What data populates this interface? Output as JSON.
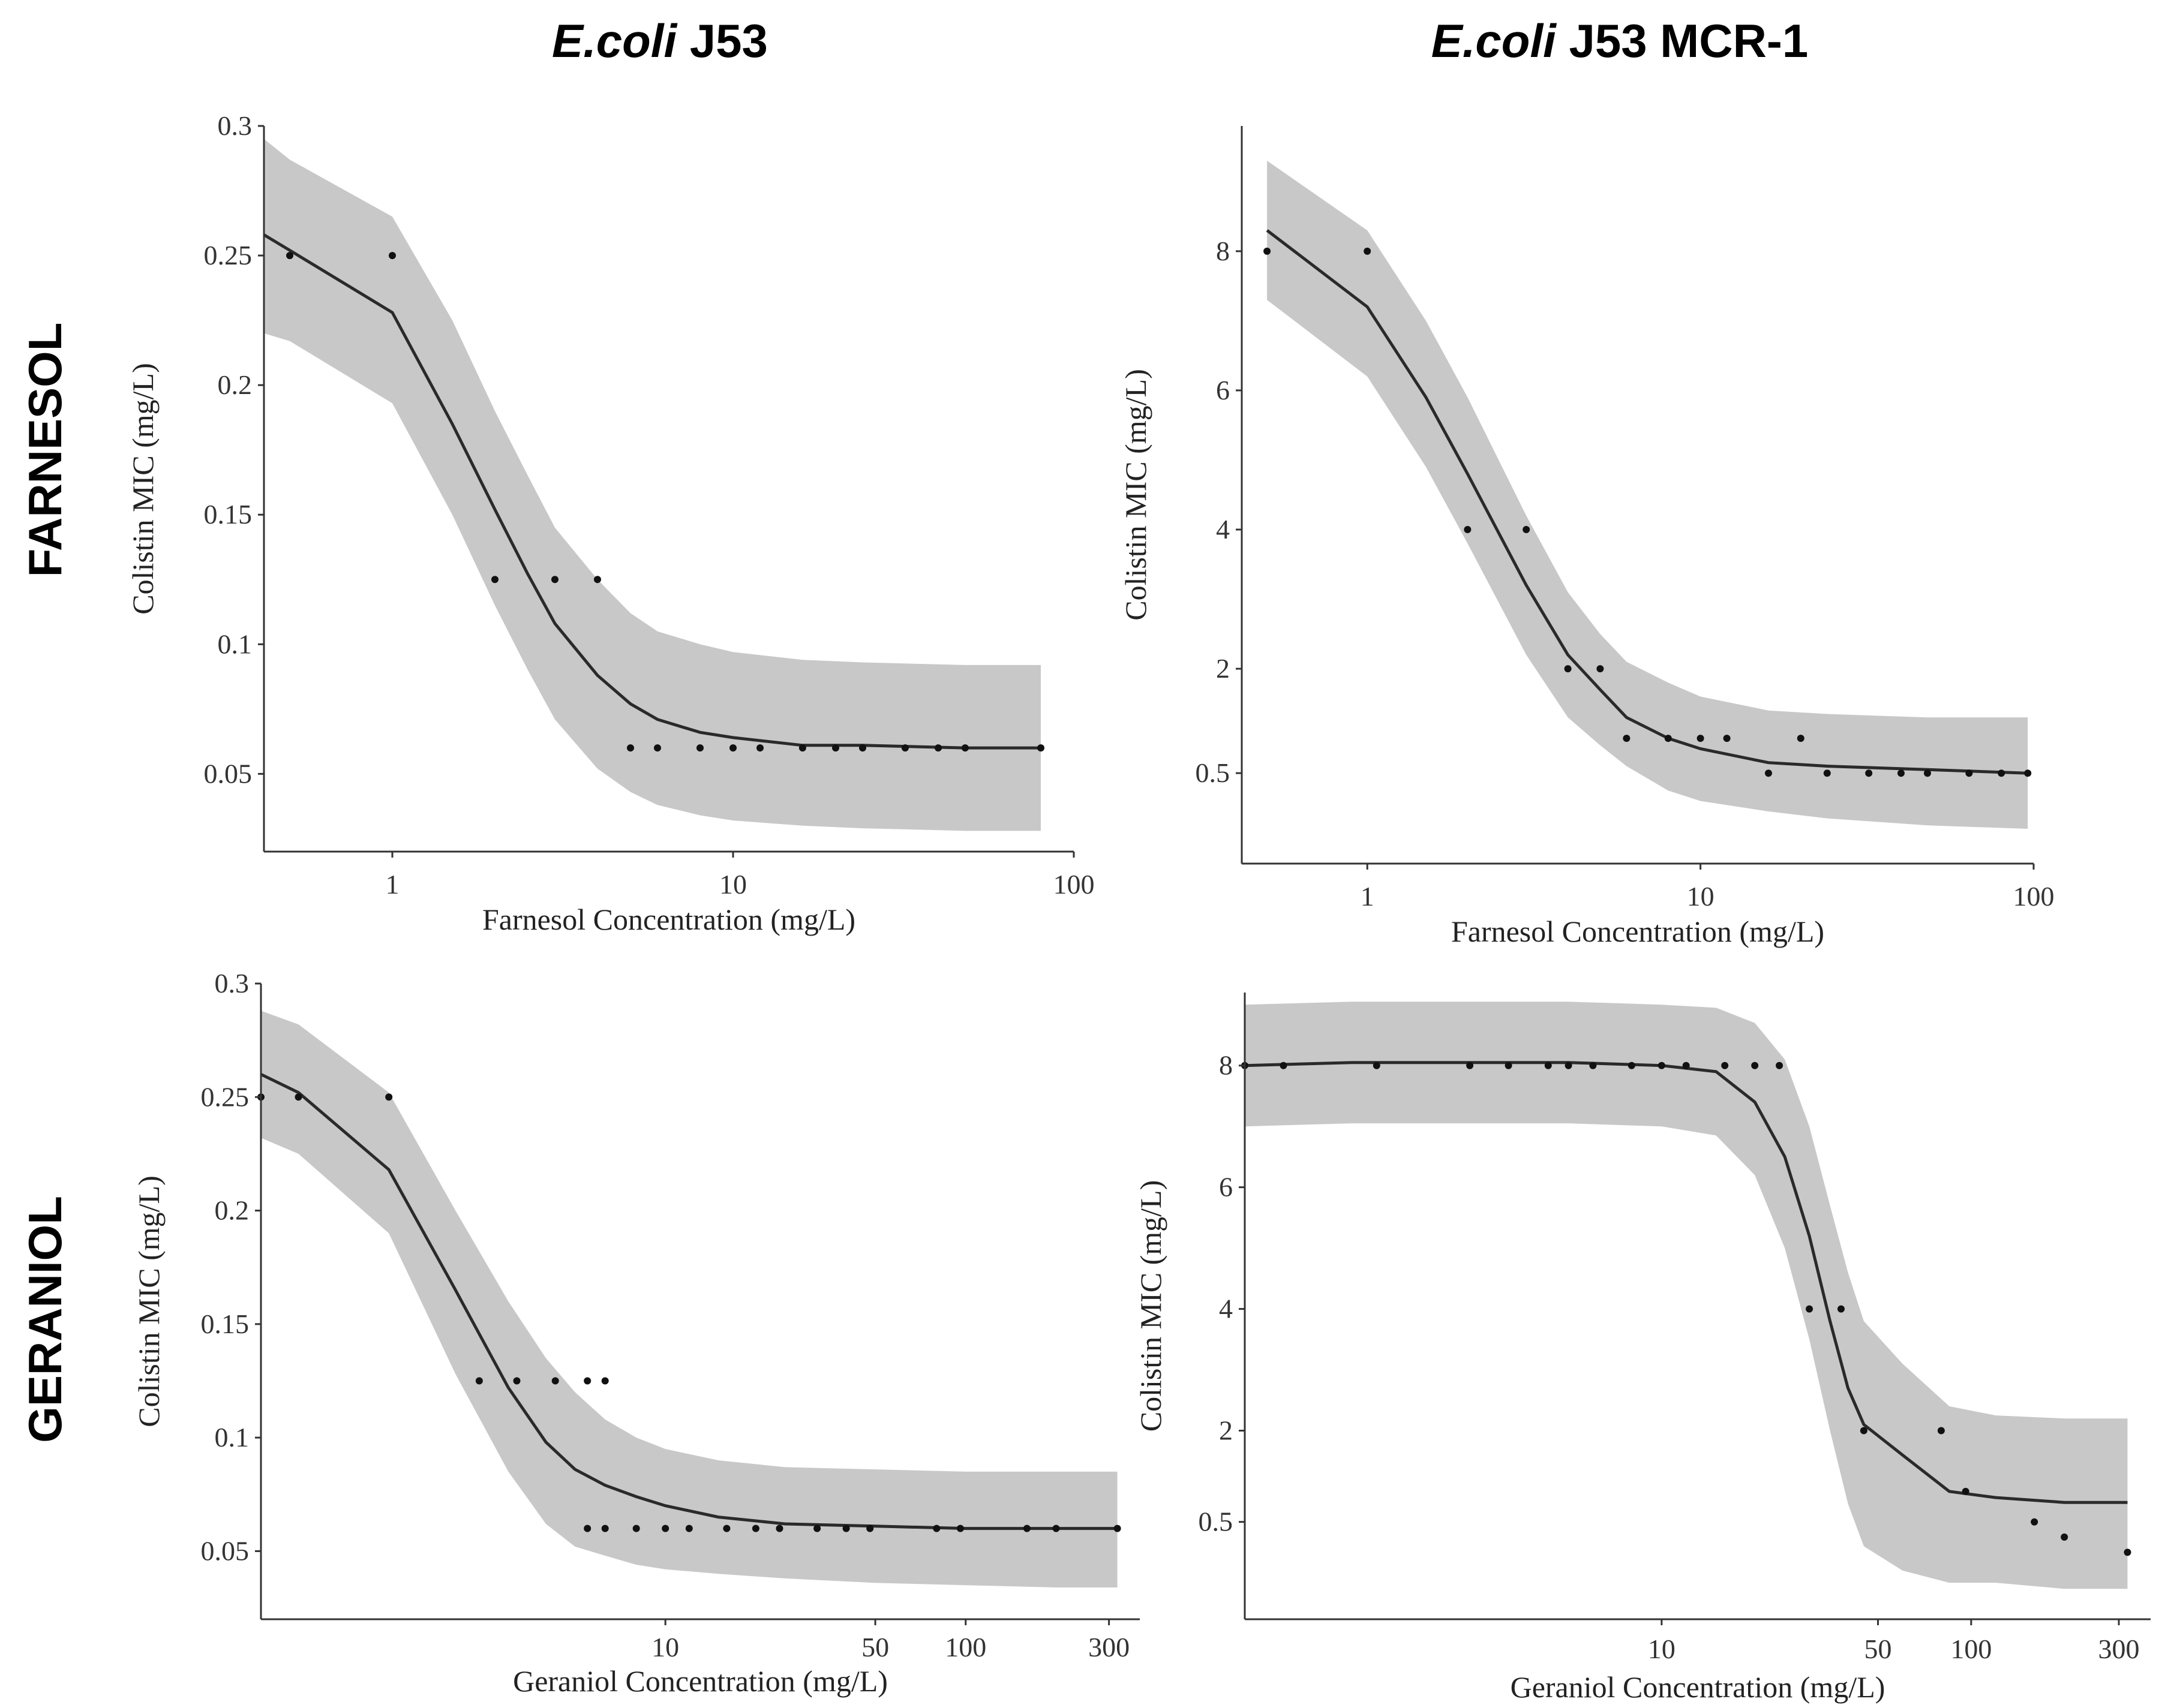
{
  "column_titles": [
    {
      "italic": "E.coli",
      "rest": " J53"
    },
    {
      "italic": "E.coli",
      "rest": " J53 MCR-1"
    }
  ],
  "row_titles": [
    "FARNESOL",
    "GERANIOL"
  ],
  "chart_data": [
    {
      "type": "line",
      "panel": "E.coli J53 / Farnesol",
      "xscale": "log",
      "xlim": [
        0.42,
        100
      ],
      "ylim": [
        0.02,
        0.3
      ],
      "xticks": [
        1,
        10,
        100
      ],
      "xtick_labels": [
        "1",
        "10",
        "100"
      ],
      "yticks": [
        0.05,
        0.1,
        0.15,
        0.2,
        0.25,
        0.3
      ],
      "ytick_labels": [
        "0.05",
        "0.1",
        "0.15",
        "0.2",
        "0.25",
        "0.3"
      ],
      "xlabel": "Farnesol Concentration (mg/L)",
      "ylabel": "Colistin MIC (mg/L)",
      "points": {
        "x": [
          0.5,
          1,
          2,
          3,
          4,
          5,
          6,
          8,
          10,
          12,
          16,
          20,
          24,
          32,
          40,
          48,
          80
        ],
        "y": [
          0.25,
          0.25,
          0.125,
          0.125,
          0.125,
          0.06,
          0.06,
          0.06,
          0.06,
          0.06,
          0.06,
          0.06,
          0.06,
          0.06,
          0.06,
          0.06,
          0.06
        ]
      },
      "fit": {
        "x": [
          0.42,
          0.5,
          1,
          1.5,
          2,
          2.5,
          3,
          4,
          5,
          6,
          8,
          10,
          16,
          24,
          48,
          80
        ],
        "y": [
          0.258,
          0.252,
          0.228,
          0.185,
          0.152,
          0.127,
          0.108,
          0.088,
          0.077,
          0.071,
          0.066,
          0.064,
          0.061,
          0.061,
          0.06,
          0.06
        ]
      },
      "ci_upper": [
        0.295,
        0.287,
        0.265,
        0.225,
        0.19,
        0.165,
        0.145,
        0.125,
        0.112,
        0.105,
        0.1,
        0.097,
        0.094,
        0.093,
        0.092,
        0.092
      ],
      "ci_lower": [
        0.22,
        0.217,
        0.193,
        0.15,
        0.115,
        0.09,
        0.071,
        0.052,
        0.043,
        0.038,
        0.034,
        0.032,
        0.03,
        0.029,
        0.028,
        0.028
      ]
    },
    {
      "type": "line",
      "panel": "E.coli J53 MCR-1 / Farnesol",
      "xscale": "log",
      "xlim": [
        0.42,
        100
      ],
      "ylim": [
        -0.8,
        9.8
      ],
      "xticks": [
        1,
        10,
        100
      ],
      "xtick_labels": [
        "1",
        "10",
        "100"
      ],
      "yticks": [
        0.5,
        2,
        4,
        6,
        8
      ],
      "ytick_labels": [
        "0.5",
        "2",
        "4",
        "6",
        "8"
      ],
      "xlabel": "Farnesol Concentration (mg/L)",
      "ylabel": "Colistin MIC (mg/L)",
      "points": {
        "x": [
          0.5,
          1,
          2,
          3,
          4,
          5,
          6,
          8,
          10,
          12,
          16,
          20,
          24,
          32,
          40,
          48,
          64,
          80,
          96
        ],
        "y": [
          8,
          8,
          4,
          4,
          2,
          2,
          1,
          1,
          1,
          1,
          0.5,
          1,
          0.5,
          0.5,
          0.5,
          0.5,
          0.5,
          0.5,
          0.5
        ]
      },
      "fit": {
        "x": [
          0.5,
          1,
          1.5,
          2,
          3,
          4,
          5,
          6,
          8,
          10,
          16,
          24,
          48,
          96
        ],
        "y": [
          8.3,
          7.2,
          5.9,
          4.8,
          3.2,
          2.2,
          1.7,
          1.3,
          1.0,
          0.85,
          0.65,
          0.6,
          0.55,
          0.5
        ]
      },
      "ci_upper": [
        9.3,
        8.3,
        7.0,
        5.9,
        4.2,
        3.1,
        2.5,
        2.1,
        1.8,
        1.6,
        1.4,
        1.35,
        1.3,
        1.3
      ],
      "ci_lower": [
        7.3,
        6.2,
        4.9,
        3.8,
        2.2,
        1.3,
        0.9,
        0.6,
        0.25,
        0.1,
        -0.05,
        -0.15,
        -0.25,
        -0.3
      ]
    },
    {
      "type": "line",
      "panel": "E.coli J53 / Geraniol",
      "xscale": "log",
      "xlim": [
        0.45,
        380
      ],
      "ylim": [
        0.02,
        0.3
      ],
      "xticks": [
        10,
        50,
        100,
        300
      ],
      "xtick_labels": [
        "10",
        "50",
        "100",
        "300"
      ],
      "yticks": [
        0.05,
        0.1,
        0.15,
        0.2,
        0.25,
        0.3
      ],
      "ytick_labels": [
        "0.05",
        "0.1",
        "0.15",
        "0.2",
        "0.25",
        "0.3"
      ],
      "xlabel": "Geraniol Concentration (mg/L)",
      "ylabel": "Colistin MIC (mg/L)",
      "points": {
        "x": [
          0.45,
          0.6,
          1.2,
          2.4,
          3.2,
          4.3,
          5.5,
          6.3,
          5.5,
          6.3,
          8,
          10,
          12,
          16,
          20,
          24,
          32,
          40,
          48,
          80,
          96,
          160,
          200,
          320
        ],
        "y": [
          0.25,
          0.25,
          0.25,
          0.125,
          0.125,
          0.125,
          0.125,
          0.125,
          0.06,
          0.06,
          0.06,
          0.06,
          0.06,
          0.06,
          0.06,
          0.06,
          0.06,
          0.06,
          0.06,
          0.06,
          0.06,
          0.06,
          0.06,
          0.06
        ]
      },
      "fit": {
        "x": [
          0.45,
          0.6,
          1.2,
          2,
          3,
          4,
          5,
          6.3,
          8,
          10,
          15,
          25,
          50,
          100,
          200,
          320
        ],
        "y": [
          0.26,
          0.252,
          0.218,
          0.165,
          0.122,
          0.098,
          0.086,
          0.079,
          0.074,
          0.07,
          0.065,
          0.062,
          0.061,
          0.06,
          0.06,
          0.06
        ]
      },
      "ci_upper": [
        0.288,
        0.282,
        0.252,
        0.2,
        0.16,
        0.135,
        0.12,
        0.108,
        0.1,
        0.095,
        0.09,
        0.087,
        0.086,
        0.085,
        0.085,
        0.085
      ],
      "ci_lower": [
        0.232,
        0.225,
        0.19,
        0.128,
        0.085,
        0.062,
        0.052,
        0.048,
        0.044,
        0.042,
        0.04,
        0.038,
        0.036,
        0.035,
        0.034,
        0.034
      ]
    },
    {
      "type": "line",
      "panel": "E.coli J53 MCR-1 / Geraniol",
      "xscale": "log",
      "xlim": [
        0.45,
        380
      ],
      "ylim": [
        -1.1,
        9.2
      ],
      "xticks": [
        10,
        50,
        100,
        300
      ],
      "xtick_labels": [
        "10",
        "50",
        "100",
        "300"
      ],
      "yticks": [
        0.5,
        2,
        4,
        6,
        8
      ],
      "ytick_labels": [
        "0.5",
        "2",
        "4",
        "6",
        "8"
      ],
      "xlabel": "Geraniol Concentration (mg/L)",
      "ylabel": "Colistin MIC (mg/L)",
      "points": {
        "x": [
          0.45,
          0.6,
          1.2,
          2.4,
          3.2,
          4.3,
          5,
          6,
          8,
          10,
          12,
          16,
          20,
          24,
          30,
          38,
          45,
          80,
          96,
          160,
          200,
          320
        ],
        "y": [
          8,
          8,
          8,
          8,
          8,
          8,
          8,
          8,
          8,
          8,
          8,
          8,
          8,
          8,
          4,
          4,
          2,
          2,
          1,
          0.5,
          0.25,
          0
        ]
      },
      "fit": {
        "x": [
          0.45,
          1,
          5,
          10,
          15,
          20,
          25,
          30,
          35,
          40,
          45,
          60,
          85,
          120,
          200,
          320
        ],
        "y": [
          8.0,
          8.05,
          8.05,
          8.0,
          7.9,
          7.4,
          6.5,
          5.2,
          3.8,
          2.7,
          2.1,
          1.6,
          1.0,
          0.9,
          0.82,
          0.82
        ]
      },
      "ci_upper": [
        9.0,
        9.05,
        9.05,
        9.0,
        8.95,
        8.7,
        8.1,
        7.0,
        5.7,
        4.6,
        3.8,
        3.1,
        2.4,
        2.25,
        2.2,
        2.2
      ],
      "ci_lower": [
        7.0,
        7.05,
        7.05,
        7.0,
        6.85,
        6.2,
        5.0,
        3.5,
        2.0,
        0.8,
        0.1,
        -0.3,
        -0.5,
        -0.5,
        -0.6,
        -0.6
      ]
    }
  ]
}
